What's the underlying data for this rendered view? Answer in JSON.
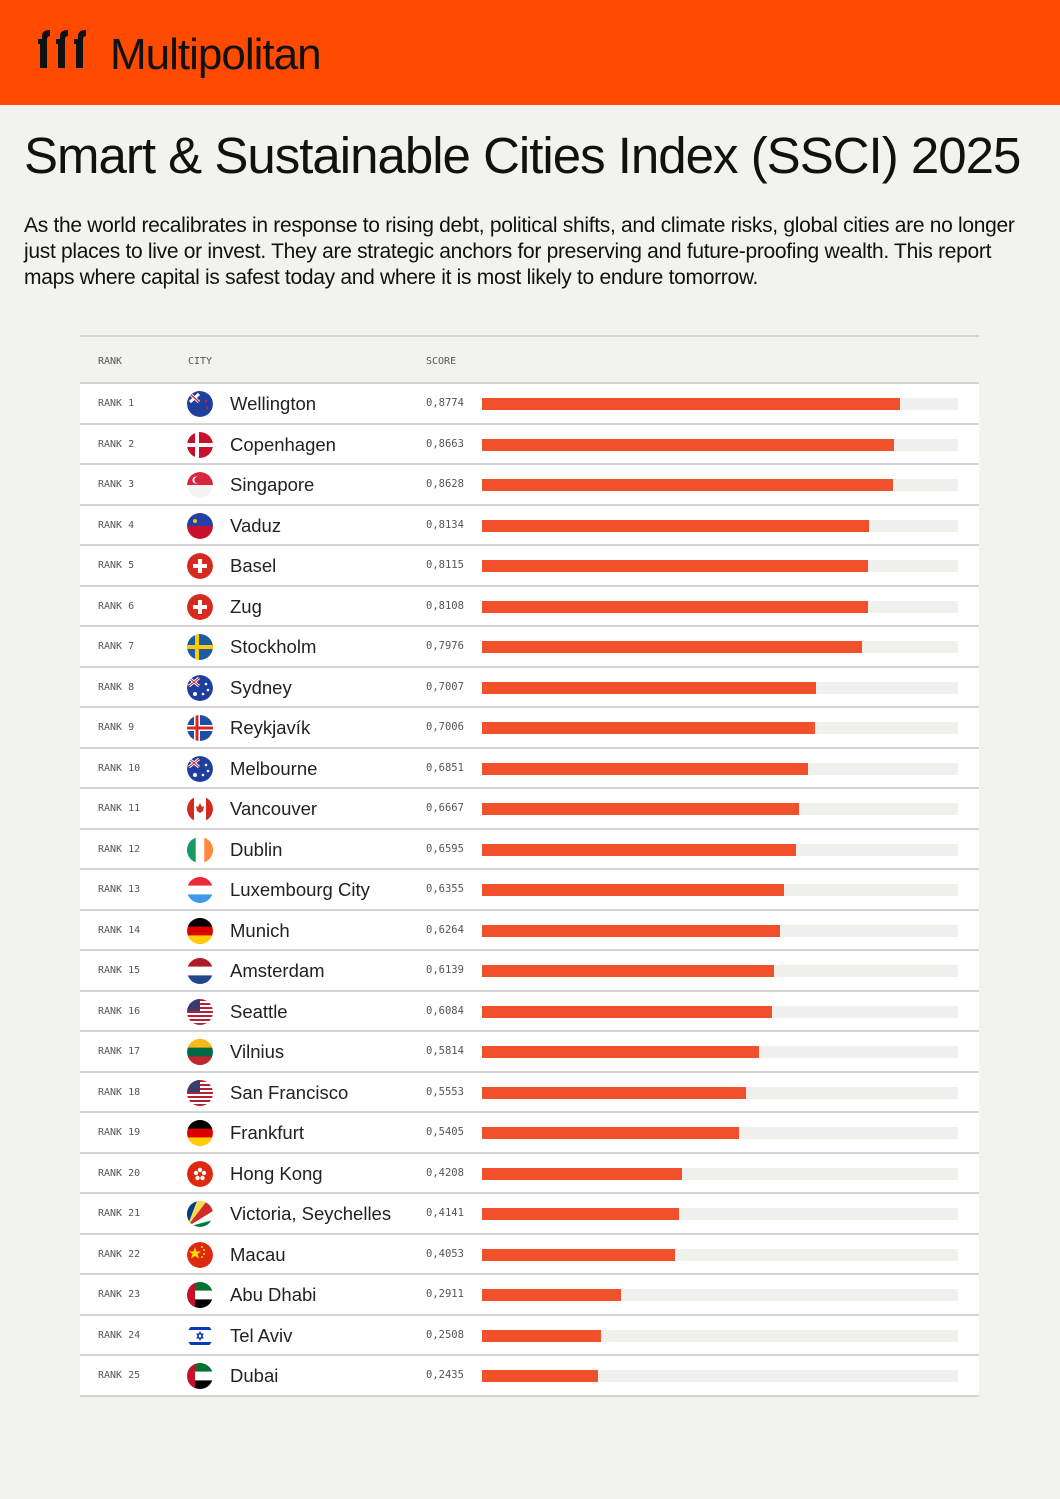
{
  "brand": {
    "name": "Multipolitan",
    "color": "#ff4a00"
  },
  "title": "Smart & Sustainable Cities Index (SSCI) 2025",
  "intro": "As the world recalibrates in response to rising debt, political shifts, and climate risks, global cities are no longer just places to live or invest. They are strategic anchors for preserving and future-proofing wealth. This report maps where capital is safest today and where it is most likely to endure tomorrow.",
  "table": {
    "headers": {
      "rank": "RANK",
      "city": "CITY",
      "score": "SCORE"
    }
  },
  "chart_data": {
    "type": "bar",
    "orientation": "horizontal",
    "xlim": [
      0,
      1
    ],
    "bar_color": "#f0502a",
    "rows": [
      {
        "rank": "RANK 1",
        "city": "Wellington",
        "flag": "new-zealand-flag-icon",
        "score_label": "0,8774",
        "value": 0.8774
      },
      {
        "rank": "RANK 2",
        "city": "Copenhagen",
        "flag": "denmark-flag-icon",
        "score_label": "0,8663",
        "value": 0.8663
      },
      {
        "rank": "RANK 3",
        "city": "Singapore",
        "flag": "singapore-flag-icon",
        "score_label": "0,8628",
        "value": 0.8628
      },
      {
        "rank": "RANK 4",
        "city": "Vaduz",
        "flag": "liechtenstein-flag-icon",
        "score_label": "0,8134",
        "value": 0.8134
      },
      {
        "rank": "RANK 5",
        "city": "Basel",
        "flag": "switzerland-flag-icon",
        "score_label": "0,8115",
        "value": 0.8115
      },
      {
        "rank": "RANK 6",
        "city": "Zug",
        "flag": "switzerland-flag-icon",
        "score_label": "0,8108",
        "value": 0.8108
      },
      {
        "rank": "RANK 7",
        "city": "Stockholm",
        "flag": "sweden-flag-icon",
        "score_label": "0,7976",
        "value": 0.7976
      },
      {
        "rank": "RANK 8",
        "city": "Sydney",
        "flag": "australia-flag-icon",
        "score_label": "0,7007",
        "value": 0.7007
      },
      {
        "rank": "RANK 9",
        "city": "Reykjavík",
        "flag": "iceland-flag-icon",
        "score_label": "0,7006",
        "value": 0.7006
      },
      {
        "rank": "RANK 10",
        "city": "Melbourne",
        "flag": "australia-flag-icon",
        "score_label": "0,6851",
        "value": 0.6851
      },
      {
        "rank": "RANK 11",
        "city": "Vancouver",
        "flag": "canada-flag-icon",
        "score_label": "0,6667",
        "value": 0.6667
      },
      {
        "rank": "RANK 12",
        "city": "Dublin",
        "flag": "ireland-flag-icon",
        "score_label": "0,6595",
        "value": 0.6595
      },
      {
        "rank": "RANK 13",
        "city": "Luxembourg City",
        "flag": "luxembourg-flag-icon",
        "score_label": "0,6355",
        "value": 0.6355
      },
      {
        "rank": "RANK 14",
        "city": "Munich",
        "flag": "germany-flag-icon",
        "score_label": "0,6264",
        "value": 0.6264
      },
      {
        "rank": "RANK 15",
        "city": "Amsterdam",
        "flag": "netherlands-flag-icon",
        "score_label": "0,6139",
        "value": 0.6139
      },
      {
        "rank": "RANK 16",
        "city": "Seattle",
        "flag": "usa-flag-icon",
        "score_label": "0,6084",
        "value": 0.6084
      },
      {
        "rank": "RANK 17",
        "city": "Vilnius",
        "flag": "lithuania-flag-icon",
        "score_label": "0,5814",
        "value": 0.5814
      },
      {
        "rank": "RANK 18",
        "city": "San Francisco",
        "flag": "usa-flag-icon",
        "score_label": "0,5553",
        "value": 0.5553
      },
      {
        "rank": "RANK 19",
        "city": "Frankfurt",
        "flag": "germany-flag-icon",
        "score_label": "0,5405",
        "value": 0.5405
      },
      {
        "rank": "RANK 20",
        "city": "Hong Kong",
        "flag": "hong-kong-flag-icon",
        "score_label": "0,4208",
        "value": 0.4208
      },
      {
        "rank": "RANK 21",
        "city": "Victoria, Seychelles",
        "flag": "seychelles-flag-icon",
        "score_label": "0,4141",
        "value": 0.4141
      },
      {
        "rank": "RANK 22",
        "city": "Macau",
        "flag": "china-flag-icon",
        "score_label": "0,4053",
        "value": 0.4053
      },
      {
        "rank": "RANK 23",
        "city": "Abu Dhabi",
        "flag": "uae-flag-icon",
        "score_label": "0,2911",
        "value": 0.2911
      },
      {
        "rank": "RANK 24",
        "city": "Tel Aviv",
        "flag": "israel-flag-icon",
        "score_label": "0,2508",
        "value": 0.2508
      },
      {
        "rank": "RANK 25",
        "city": "Dubai",
        "flag": "uae-flag-icon",
        "score_label": "0,2435",
        "value": 0.2435
      }
    ]
  }
}
